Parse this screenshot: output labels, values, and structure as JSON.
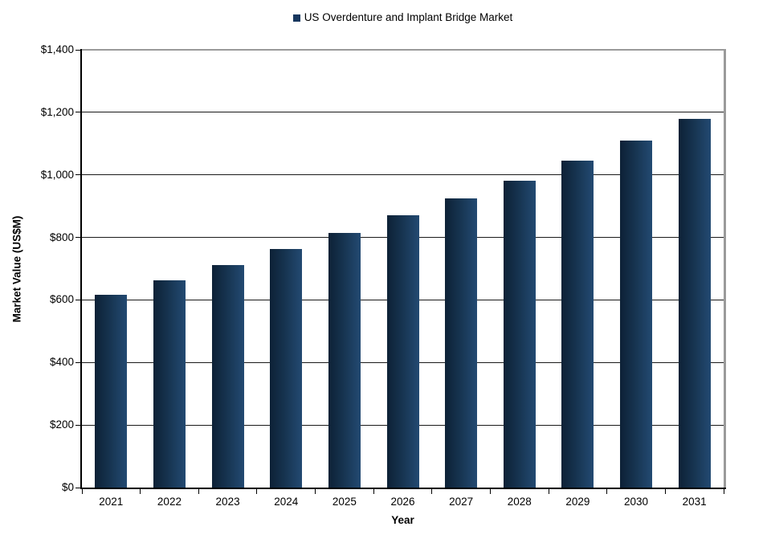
{
  "chart_data": {
    "type": "bar",
    "title": "US Overdenture and Implant Bridge Market",
    "legend": [
      "US Overdenture and Implant Bridge Market"
    ],
    "legend_position": "top-center",
    "categories": [
      "2021",
      "2022",
      "2023",
      "2024",
      "2025",
      "2026",
      "2027",
      "2028",
      "2029",
      "2030",
      "2031"
    ],
    "series": [
      {
        "name": "US Overdenture and Implant Bridge Market",
        "values": [
          616,
          663,
          712,
          763,
          814,
          871,
          926,
          982,
          1046,
          1110,
          1178
        ]
      }
    ],
    "xlabel": "Year",
    "ylabel": "Market Value (US$M)",
    "ylim": [
      0,
      1400
    ],
    "ytick_step": 200,
    "y_tick_labels": [
      "$0",
      "$200",
      "$400",
      "$600",
      "$800",
      "$1,000",
      "$1,200",
      "$1,400"
    ],
    "grid": "horizontal-only"
  },
  "style": {
    "background": "#ffffff",
    "text_color": "#000000",
    "bar_gradient": [
      "#0d2136",
      "#16334f",
      "#234a72"
    ],
    "legend_marker_color": "#17375e",
    "gridline_color": "#1a1a1a",
    "axis_color": "#000000",
    "plot_border_color": "#9a9a9a"
  }
}
